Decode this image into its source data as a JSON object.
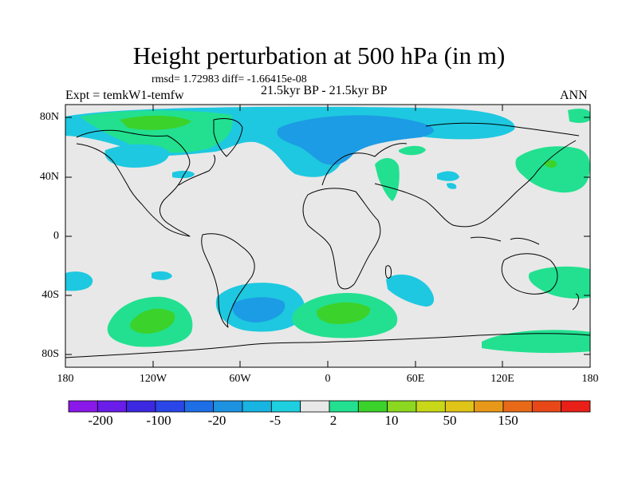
{
  "title": "Height perturbation at 500 hPa (in m)",
  "stats": "rmsd= 1.72983 diff= -1.66415e-08",
  "expt": "Expt = temkW1-temfw",
  "period": "21.5kyr BP - 21.5kyr BP",
  "season": "ANN",
  "lat_labels": [
    "80N",
    "40N",
    "0",
    "40S",
    "80S"
  ],
  "lon_labels": [
    "180",
    "120W",
    "60W",
    "0",
    "60E",
    "120E",
    "180"
  ],
  "colorbar": {
    "labels": [
      "-200",
      "-100",
      "-20",
      "-5",
      "2",
      "10",
      "50",
      "150"
    ],
    "colors": [
      "#8a18e8",
      "#6a1ce8",
      "#3c28e0",
      "#2a46e8",
      "#1e6ee6",
      "#1c92e0",
      "#18b4e2",
      "#1ecfe0",
      "#e8e8e8",
      "#22e090",
      "#3cd22c",
      "#8cd820",
      "#c8d818",
      "#e0c418",
      "#e89818",
      "#e86a18",
      "#e84818",
      "#e82018"
    ]
  },
  "map": {
    "background": "#e8e8e8",
    "colors": {
      "light_blue": "#1ec8e0",
      "mid_blue": "#1c9ce4",
      "light_green": "#22e090",
      "mid_green": "#3cd22c"
    }
  }
}
